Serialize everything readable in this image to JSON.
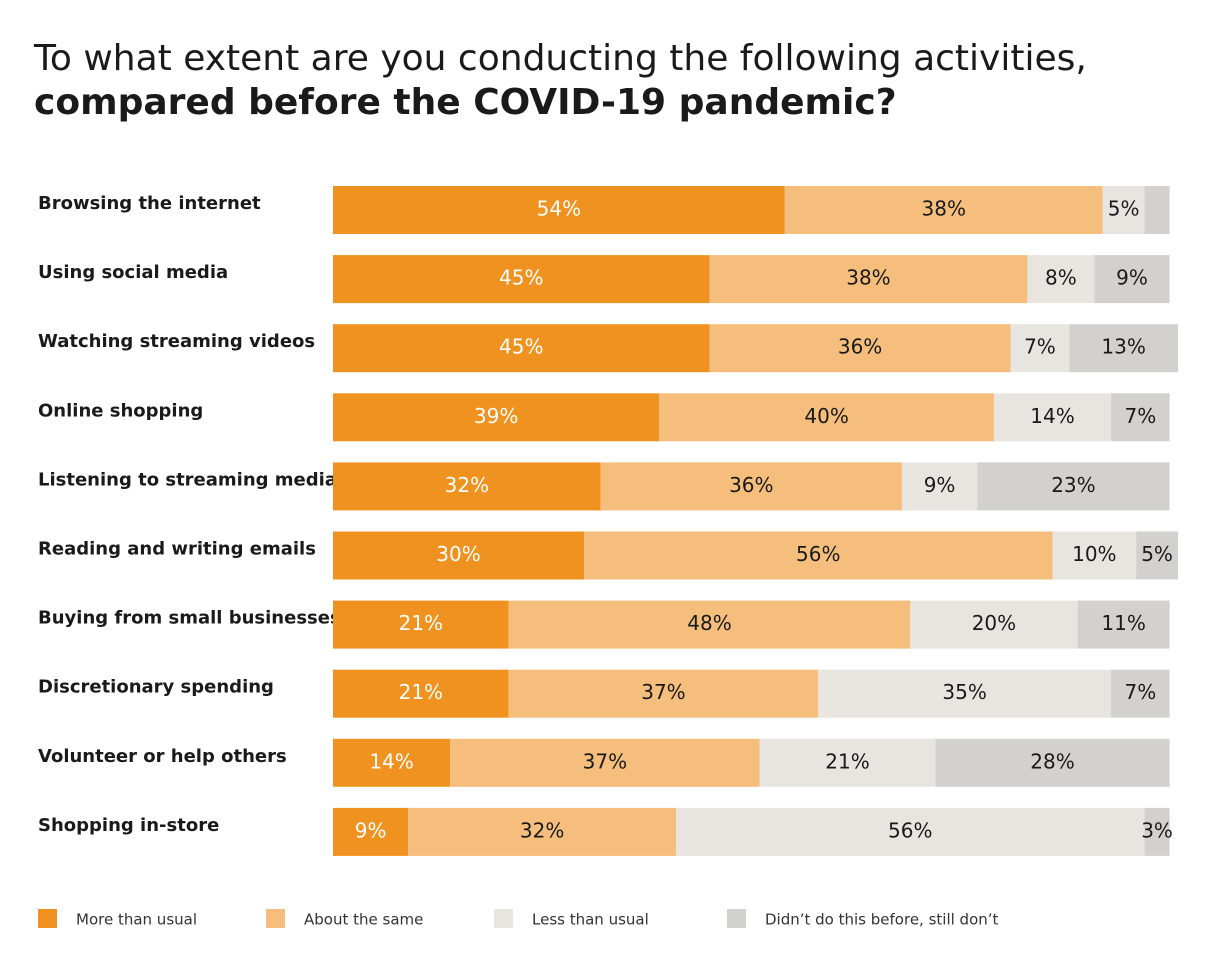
{
  "chart_data": {
    "type": "stacked_bar_horizontal",
    "title": [
      "To what extent are you conducting the following activities,",
      "compared before the COVID-19 pandemic?"
    ],
    "categories": [
      "Browsing the internet",
      "Using social media",
      "Watching streaming videos",
      "Online shopping",
      "Listening to streaming media",
      "Reading and writing emails",
      "Buying from small businesses",
      "Discretionary spending",
      "Volunteer or help others",
      "Shopping in-store"
    ],
    "xlim": [
      0,
      101
    ],
    "legend": "bottom",
    "series": [
      {
        "name": "More than usual",
        "color": "#f0921f",
        "label_color": "#ffffff",
        "values": [
          54,
          45,
          45,
          39,
          32,
          30,
          21,
          21,
          14,
          9
        ],
        "value_labels": [
          "54%",
          "45%",
          "45%",
          "39%",
          "32%",
          "30%",
          "21%",
          "21%",
          "14%",
          "9%"
        ]
      },
      {
        "name": "About the same",
        "color": "#f5be7c",
        "label_color": "#1a1a1a",
        "values": [
          38,
          38,
          36,
          40,
          36,
          56,
          48,
          37,
          37,
          32
        ],
        "value_labels": [
          "38%",
          "38%",
          "36%",
          "40%",
          "36%",
          "56%",
          "48%",
          "37%",
          "37%",
          "32%"
        ]
      },
      {
        "name": "Less than usual",
        "color": "#e8e5e1",
        "label_color": "#1a1a1a",
        "values": [
          5,
          8,
          7,
          14,
          9,
          10,
          20,
          35,
          21,
          56
        ],
        "value_labels": [
          "5%",
          "8%",
          "7%",
          "14%",
          "9%",
          "10%",
          "20%",
          "35%",
          "21%",
          "56%"
        ]
      },
      {
        "name": "Didn’t do this before, still don’t",
        "color": "#d2d1ce",
        "label_color": "#1a1a1a",
        "values": [
          3,
          9,
          13,
          7,
          23,
          5,
          11,
          7,
          28,
          3
        ],
        "value_labels": [
          null,
          "9%",
          "13%",
          "7%",
          "23%",
          "5%",
          "11%",
          "7%",
          "28%",
          "3%"
        ]
      }
    ]
  }
}
